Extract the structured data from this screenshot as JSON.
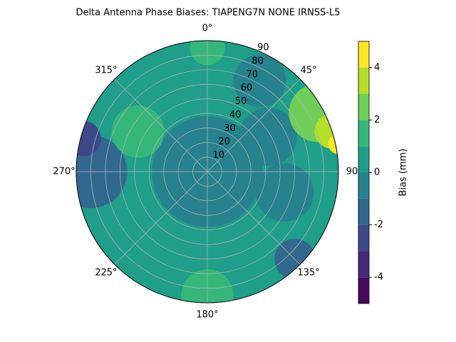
{
  "chart_data": {
    "type": "polar_contour",
    "title": "Delta Antenna Phase Biases: TIAPENG7N       NONE IRNSS-L5",
    "rlim": [
      0,
      90
    ],
    "rticks": [
      10,
      20,
      30,
      40,
      50,
      60,
      70,
      80,
      90
    ],
    "thetaticks": [
      {
        "value": 0,
        "label": "0°"
      },
      {
        "value": 45,
        "label": "45°"
      },
      {
        "value": 90,
        "label": "90"
      },
      {
        "value": 135,
        "label": "135°"
      },
      {
        "value": 180,
        "label": "180°"
      },
      {
        "value": 225,
        "label": "225°"
      },
      {
        "value": 270,
        "label": "270°"
      },
      {
        "value": 315,
        "label": "315°"
      }
    ],
    "grid": true,
    "levels": [
      -5,
      -4,
      -3,
      -2,
      -1,
      0,
      1,
      2,
      3,
      4,
      5
    ],
    "colors": [
      "#450a5c",
      "#482878",
      "#3e4989",
      "#31688e",
      "#26828e",
      "#1f9e89",
      "#35b779",
      "#6ece58",
      "#b5de2b",
      "#fde725"
    ],
    "patches": [
      {
        "azimuth": 0,
        "zenith": 0,
        "size": 100,
        "value": 0.5
      },
      {
        "azimuth": 0,
        "zenith": 0,
        "size": 38,
        "value": -0.5
      },
      {
        "azimuth": 270,
        "zenith": 80,
        "size": 25,
        "value": -1.5
      },
      {
        "azimuth": 285,
        "zenith": 88,
        "size": 12,
        "value": -2.5
      },
      {
        "azimuth": 30,
        "zenith": 72,
        "size": 18,
        "value": -0.5
      },
      {
        "azimuth": 60,
        "zenith": 48,
        "size": 20,
        "value": -0.5
      },
      {
        "azimuth": 105,
        "zenith": 55,
        "size": 20,
        "value": -0.5
      },
      {
        "azimuth": 135,
        "zenith": 85,
        "size": 14,
        "value": -1.5
      },
      {
        "azimuth": 300,
        "zenith": 55,
        "size": 18,
        "value": 1.5
      },
      {
        "azimuth": 180,
        "zenith": 85,
        "size": 18,
        "value": 1.5
      },
      {
        "azimuth": 0,
        "zenith": 85,
        "size": 12,
        "value": 1.5
      },
      {
        "azimuth": 62,
        "zenith": 86,
        "size": 20,
        "value": 2.5
      },
      {
        "azimuth": 72,
        "zenith": 90,
        "size": 12,
        "value": 3.5
      },
      {
        "azimuth": 78,
        "zenith": 92,
        "size": 7,
        "value": 4.5
      }
    ],
    "colorbar_label": "Bias (mm)",
    "colorbar_ticks": [
      -4,
      -2,
      0,
      2,
      4
    ]
  }
}
